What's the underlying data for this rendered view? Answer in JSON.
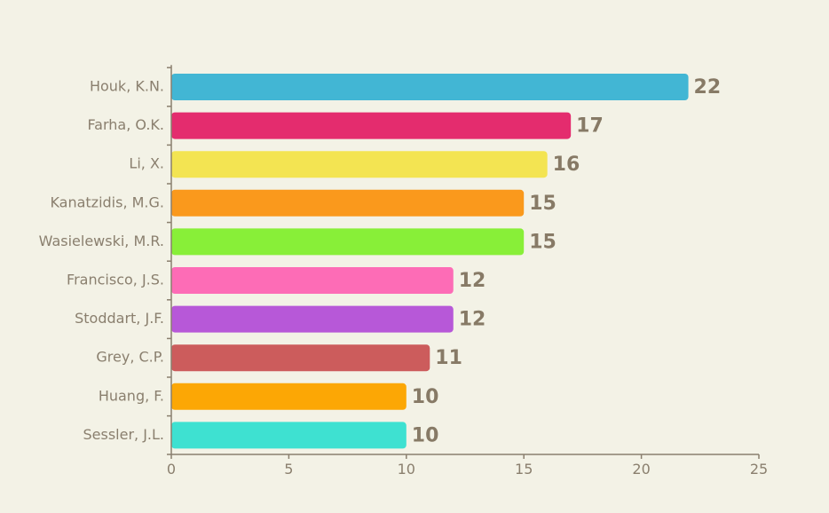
{
  "chart_data": {
    "type": "bar",
    "orientation": "horizontal",
    "title": "",
    "xlabel": "",
    "ylabel": "",
    "xlim": [
      0,
      25
    ],
    "x_ticks": [
      0,
      5,
      10,
      15,
      20,
      25
    ],
    "grid": false,
    "legend": "none",
    "categories": [
      "Houk, K.N.",
      "Farha, O.K.",
      "Li, X.",
      "Kanatzidis, M.G.",
      "Wasielewski, M.R.",
      "Francisco, J.S.",
      "Stoddart, J.F.",
      "Grey, C.P.",
      "Huang, F.",
      "Sessler, J.L."
    ],
    "values": [
      22,
      17,
      16,
      15,
      15,
      12,
      12,
      11,
      10,
      10
    ],
    "colors": [
      "#42b6d4",
      "#e42c6e",
      "#f3e452",
      "#fa991c",
      "#88ef38",
      "#fd6cb6",
      "#b758d8",
      "#cc5c5c",
      "#fca705",
      "#3ee1d1"
    ]
  }
}
